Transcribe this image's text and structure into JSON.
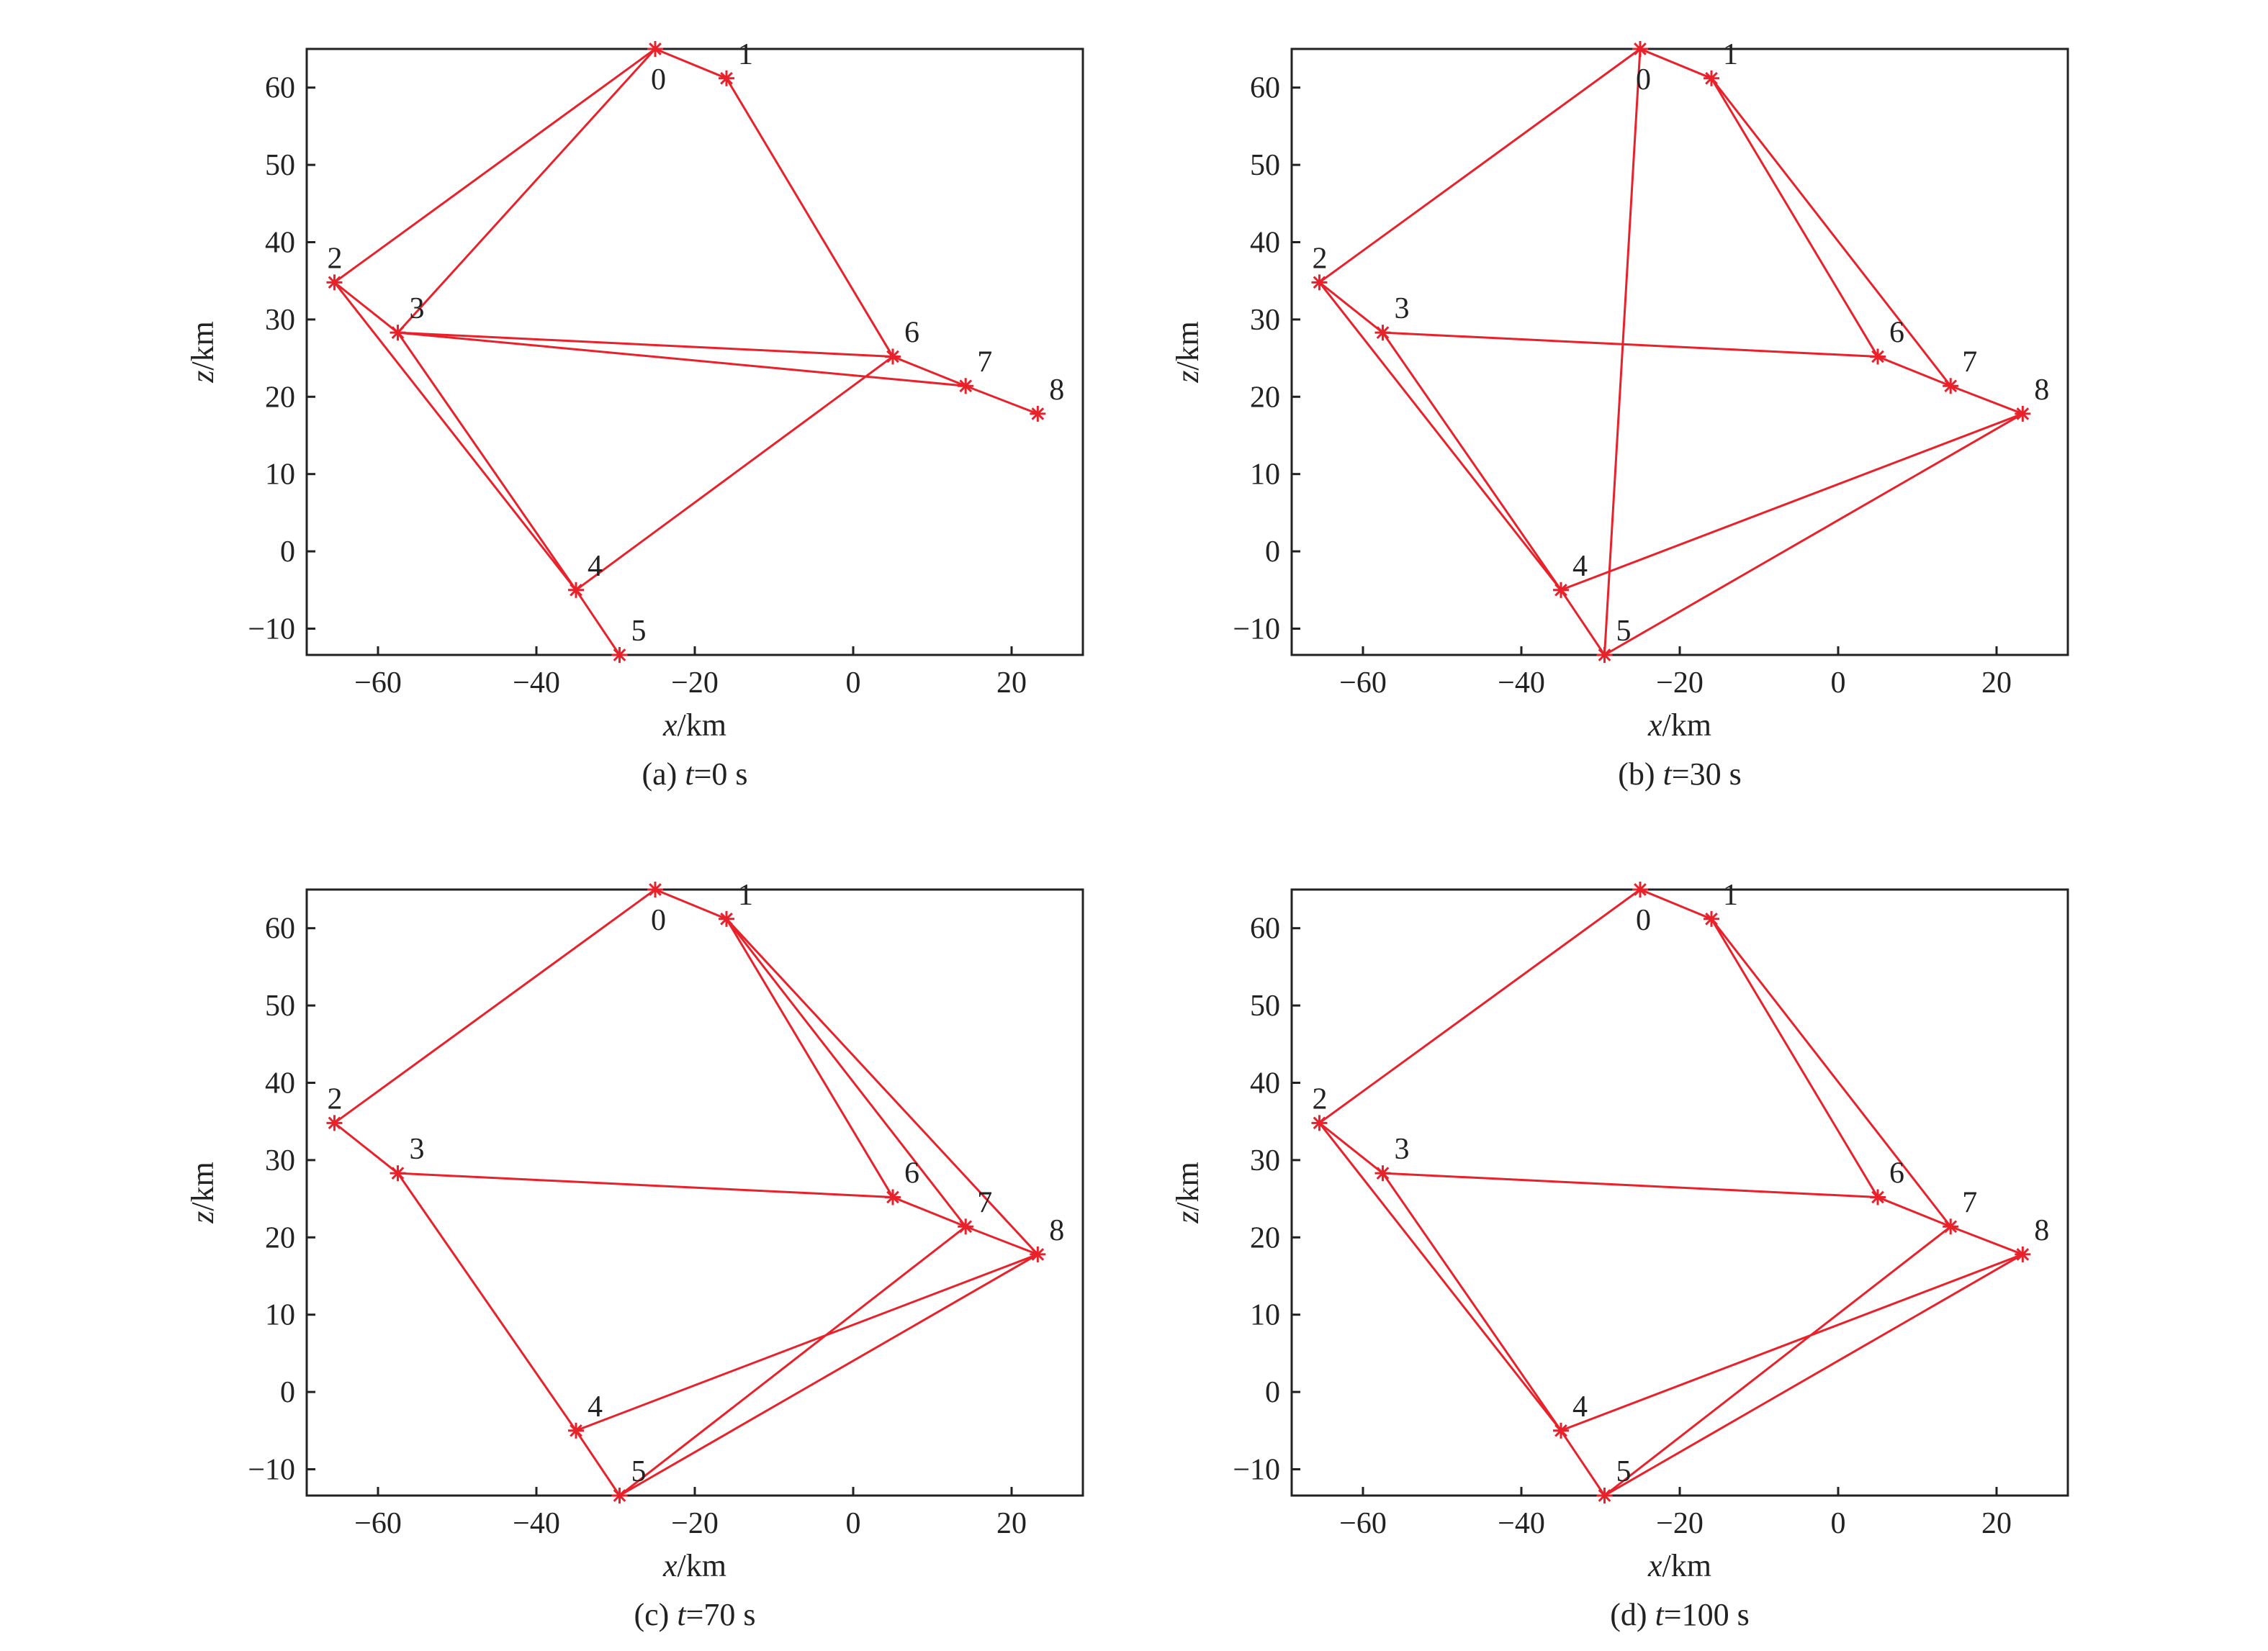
{
  "colors": {
    "line": "#e8212b",
    "axis": "#222222"
  },
  "chart_data": [
    {
      "type": "line",
      "caption_prefix": "(a) ",
      "caption_var": "t",
      "caption_suffix": "=0 s",
      "xlabel_var": "x",
      "xlabel_unit": "/km",
      "ylabel_var": "z",
      "ylabel_unit": "/km",
      "xlim": [
        -69,
        29
      ],
      "ylim": [
        -13.4,
        65
      ],
      "xticks": [
        -60,
        -40,
        -20,
        0,
        20
      ],
      "yticks": [
        -10,
        0,
        10,
        20,
        30,
        40,
        50,
        60
      ],
      "nodes": [
        {
          "id": "0",
          "x": -25,
          "z": 65
        },
        {
          "id": "1",
          "x": -16,
          "z": 61.2
        },
        {
          "id": "2",
          "x": -65.5,
          "z": 34.8
        },
        {
          "id": "3",
          "x": -57.5,
          "z": 28.3
        },
        {
          "id": "4",
          "x": -35,
          "z": -5
        },
        {
          "id": "5",
          "x": -29.5,
          "z": -13.4
        },
        {
          "id": "6",
          "x": 5,
          "z": 25.2
        },
        {
          "id": "7",
          "x": 14.2,
          "z": 21.4
        },
        {
          "id": "8",
          "x": 23.3,
          "z": 17.8
        }
      ],
      "edges": [
        [
          0,
          1
        ],
        [
          0,
          2
        ],
        [
          0,
          3
        ],
        [
          1,
          6
        ],
        [
          2,
          3
        ],
        [
          2,
          4
        ],
        [
          3,
          4
        ],
        [
          3,
          6
        ],
        [
          3,
          7
        ],
        [
          4,
          5
        ],
        [
          4,
          6
        ],
        [
          6,
          7
        ],
        [
          7,
          8
        ]
      ]
    },
    {
      "type": "line",
      "caption_prefix": "(b) ",
      "caption_var": "t",
      "caption_suffix": "=30 s",
      "xlabel_var": "x",
      "xlabel_unit": "/km",
      "ylabel_var": "z",
      "ylabel_unit": "/km",
      "xlim": [
        -69,
        29
      ],
      "ylim": [
        -13.4,
        65
      ],
      "xticks": [
        -60,
        -40,
        -20,
        0,
        20
      ],
      "yticks": [
        -10,
        0,
        10,
        20,
        30,
        40,
        50,
        60
      ],
      "nodes": [
        {
          "id": "0",
          "x": -25,
          "z": 65
        },
        {
          "id": "1",
          "x": -16,
          "z": 61.2
        },
        {
          "id": "2",
          "x": -65.5,
          "z": 34.8
        },
        {
          "id": "3",
          "x": -57.5,
          "z": 28.3
        },
        {
          "id": "4",
          "x": -35,
          "z": -5
        },
        {
          "id": "5",
          "x": -29.5,
          "z": -13.4
        },
        {
          "id": "6",
          "x": 5,
          "z": 25.2
        },
        {
          "id": "7",
          "x": 14.2,
          "z": 21.4
        },
        {
          "id": "8",
          "x": 23.3,
          "z": 17.8
        }
      ],
      "edges": [
        [
          0,
          1
        ],
        [
          0,
          2
        ],
        [
          0,
          5
        ],
        [
          1,
          6
        ],
        [
          1,
          7
        ],
        [
          2,
          3
        ],
        [
          2,
          4
        ],
        [
          3,
          4
        ],
        [
          3,
          6
        ],
        [
          4,
          5
        ],
        [
          4,
          8
        ],
        [
          5,
          8
        ],
        [
          6,
          7
        ],
        [
          7,
          8
        ]
      ]
    },
    {
      "type": "line",
      "caption_prefix": "(c) ",
      "caption_var": "t",
      "caption_suffix": "=70 s",
      "xlabel_var": "x",
      "xlabel_unit": "/km",
      "ylabel_var": "z",
      "ylabel_unit": "/km",
      "xlim": [
        -69,
        29
      ],
      "ylim": [
        -13.4,
        65
      ],
      "xticks": [
        -60,
        -40,
        -20,
        0,
        20
      ],
      "yticks": [
        -10,
        0,
        10,
        20,
        30,
        40,
        50,
        60
      ],
      "nodes": [
        {
          "id": "0",
          "x": -25,
          "z": 65
        },
        {
          "id": "1",
          "x": -16,
          "z": 61.2
        },
        {
          "id": "2",
          "x": -65.5,
          "z": 34.8
        },
        {
          "id": "3",
          "x": -57.5,
          "z": 28.3
        },
        {
          "id": "4",
          "x": -35,
          "z": -5
        },
        {
          "id": "5",
          "x": -29.5,
          "z": -13.4
        },
        {
          "id": "6",
          "x": 5,
          "z": 25.2
        },
        {
          "id": "7",
          "x": 14.2,
          "z": 21.4
        },
        {
          "id": "8",
          "x": 23.3,
          "z": 17.8
        }
      ],
      "edges": [
        [
          0,
          1
        ],
        [
          0,
          2
        ],
        [
          1,
          6
        ],
        [
          1,
          7
        ],
        [
          1,
          8
        ],
        [
          2,
          3
        ],
        [
          3,
          4
        ],
        [
          3,
          6
        ],
        [
          4,
          5
        ],
        [
          4,
          8
        ],
        [
          5,
          7
        ],
        [
          5,
          8
        ],
        [
          6,
          7
        ],
        [
          7,
          8
        ]
      ]
    },
    {
      "type": "line",
      "caption_prefix": "(d) ",
      "caption_var": "t",
      "caption_suffix": "=100 s",
      "xlabel_var": "x",
      "xlabel_unit": "/km",
      "ylabel_var": "z",
      "ylabel_unit": "/km",
      "xlim": [
        -69,
        29
      ],
      "ylim": [
        -13.4,
        65
      ],
      "xticks": [
        -60,
        -40,
        -20,
        0,
        20
      ],
      "yticks": [
        -10,
        0,
        10,
        20,
        30,
        40,
        50,
        60
      ],
      "nodes": [
        {
          "id": "0",
          "x": -25,
          "z": 65
        },
        {
          "id": "1",
          "x": -16,
          "z": 61.2
        },
        {
          "id": "2",
          "x": -65.5,
          "z": 34.8
        },
        {
          "id": "3",
          "x": -57.5,
          "z": 28.3
        },
        {
          "id": "4",
          "x": -35,
          "z": -5
        },
        {
          "id": "5",
          "x": -29.5,
          "z": -13.4
        },
        {
          "id": "6",
          "x": 5,
          "z": 25.2
        },
        {
          "id": "7",
          "x": 14.2,
          "z": 21.4
        },
        {
          "id": "8",
          "x": 23.3,
          "z": 17.8
        }
      ],
      "edges": [
        [
          0,
          1
        ],
        [
          0,
          2
        ],
        [
          1,
          6
        ],
        [
          1,
          7
        ],
        [
          2,
          3
        ],
        [
          2,
          4
        ],
        [
          3,
          4
        ],
        [
          3,
          6
        ],
        [
          4,
          5
        ],
        [
          4,
          8
        ],
        [
          5,
          7
        ],
        [
          5,
          8
        ],
        [
          6,
          7
        ],
        [
          7,
          8
        ]
      ]
    }
  ]
}
